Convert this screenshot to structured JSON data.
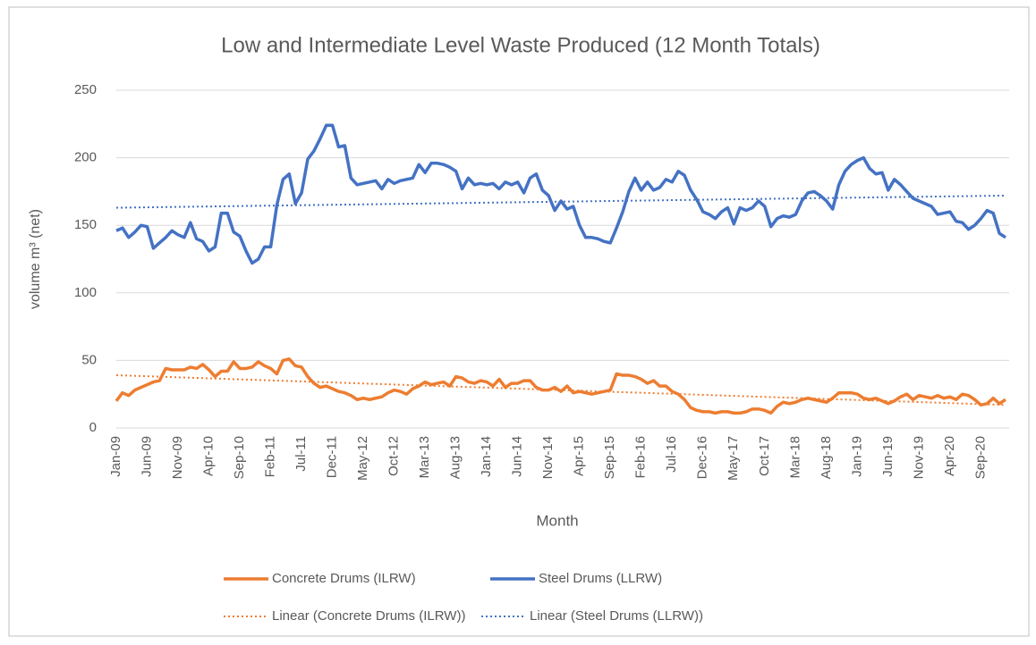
{
  "chart_data": {
    "type": "line",
    "title": "Low and Intermediate Level Waste Produced (12 Month Totals)",
    "x_label": "Month",
    "y_label": "volume m³ (net)",
    "categories": [
      "Jan-09",
      null,
      null,
      null,
      null,
      "Jun-09",
      null,
      null,
      null,
      null,
      "Nov-09",
      null,
      null,
      null,
      null,
      "Apr-10",
      null,
      null,
      null,
      null,
      "Sep-10",
      null,
      null,
      null,
      null,
      "Feb-11",
      null,
      null,
      null,
      null,
      "Jul-11",
      null,
      null,
      null,
      null,
      "Dec-11",
      null,
      null,
      null,
      null,
      "May-12",
      null,
      null,
      null,
      null,
      "Oct-12",
      null,
      null,
      null,
      null,
      "Mar-13",
      null,
      null,
      null,
      null,
      "Aug-13",
      null,
      null,
      null,
      null,
      "Jan-14",
      null,
      null,
      null,
      null,
      "Jun-14",
      null,
      null,
      null,
      null,
      "Nov-14",
      null,
      null,
      null,
      null,
      "Apr-15",
      null,
      null,
      null,
      null,
      "Sep-15",
      null,
      null,
      null,
      null,
      "Feb-16",
      null,
      null,
      null,
      null,
      "Jul-16",
      null,
      null,
      null,
      null,
      "Dec-16",
      null,
      null,
      null,
      null,
      "May-17",
      null,
      null,
      null,
      null,
      "Oct-17",
      null,
      null,
      null,
      null,
      "Mar-18",
      null,
      null,
      null,
      null,
      "Aug-18",
      null,
      null,
      null,
      null,
      "Jan-19",
      null,
      null,
      null,
      null,
      "Jun-19",
      null,
      null,
      null,
      null,
      "Nov-19",
      null,
      null,
      null,
      null,
      "Apr-20",
      null,
      null,
      null,
      null,
      "Sep-20",
      null,
      null,
      null,
      null
    ],
    "series": [
      {
        "name": "Concrete Drums (ILRW)",
        "color": "#ed7d31",
        "values": [
          20,
          26,
          24,
          28,
          30,
          32,
          34,
          35,
          44,
          43,
          43,
          43,
          45,
          44,
          47,
          43,
          38,
          42,
          42,
          49,
          44,
          44,
          45,
          49,
          46,
          44,
          40,
          50,
          51,
          46,
          45,
          38,
          33,
          30,
          31,
          29,
          27,
          26,
          24,
          21,
          22,
          21,
          22,
          23,
          26,
          28,
          27,
          25,
          29,
          31,
          34,
          32,
          33,
          34,
          31,
          38,
          37,
          34,
          33,
          35,
          34,
          31,
          36,
          30,
          33,
          33,
          35,
          35,
          30,
          28,
          28,
          30,
          27,
          31,
          26,
          27,
          26,
          25,
          26,
          27,
          28,
          40,
          39,
          39,
          38,
          36,
          33,
          35,
          31,
          31,
          27,
          25,
          21,
          15,
          13,
          12,
          12,
          11,
          12,
          12,
          11,
          11,
          12,
          14,
          14,
          13,
          11,
          16,
          19,
          18,
          19,
          21,
          22,
          21,
          20,
          19,
          22,
          26,
          26,
          26,
          25,
          22,
          21,
          22,
          20,
          18,
          20,
          23,
          25,
          21,
          24,
          23,
          22,
          24,
          22,
          23,
          21,
          25,
          24,
          21,
          17,
          18,
          22,
          18,
          21
        ]
      },
      {
        "name": "Steel Drums (LLRW)",
        "color": "#4472c4",
        "values": [
          146,
          148,
          141,
          145,
          150,
          149,
          133,
          137,
          141,
          146,
          143,
          141,
          152,
          140,
          138,
          131,
          134,
          159,
          159,
          145,
          142,
          131,
          122,
          125,
          134,
          134,
          165,
          184,
          188,
          166,
          174,
          199,
          205,
          214,
          224,
          224,
          208,
          209,
          185,
          180,
          181,
          182,
          183,
          177,
          184,
          181,
          183,
          184,
          185,
          195,
          189,
          196,
          196,
          195,
          193,
          190,
          177,
          185,
          180,
          181,
          180,
          181,
          177,
          182,
          180,
          182,
          174,
          185,
          188,
          176,
          172,
          161,
          168,
          162,
          164,
          150,
          141,
          141,
          140,
          138,
          137,
          148,
          160,
          175,
          185,
          176,
          182,
          176,
          178,
          184,
          182,
          190,
          187,
          176,
          169,
          160,
          158,
          155,
          160,
          163,
          151,
          163,
          161,
          163,
          168,
          164,
          149,
          155,
          157,
          156,
          158,
          168,
          174,
          175,
          172,
          168,
          162,
          180,
          190,
          195,
          198,
          200,
          192,
          188,
          189,
          176,
          184,
          180,
          175,
          170,
          168,
          166,
          164,
          158,
          159,
          160,
          153,
          152,
          147,
          150,
          155,
          161,
          159,
          144,
          141
        ]
      }
    ],
    "trendlines": [
      {
        "name": "Linear (Concrete Drums (ILRW))",
        "color": "#ed7d31",
        "values": [
          39,
          17
        ]
      },
      {
        "name": "Linear (Steel Drums (LLRW))",
        "color": "#4472c4",
        "values": [
          163,
          172
        ]
      }
    ],
    "ylim": [
      0,
      250
    ],
    "yticks": [
      0,
      50,
      100,
      150,
      200,
      250
    ],
    "grid": true,
    "legend": "bottom"
  }
}
